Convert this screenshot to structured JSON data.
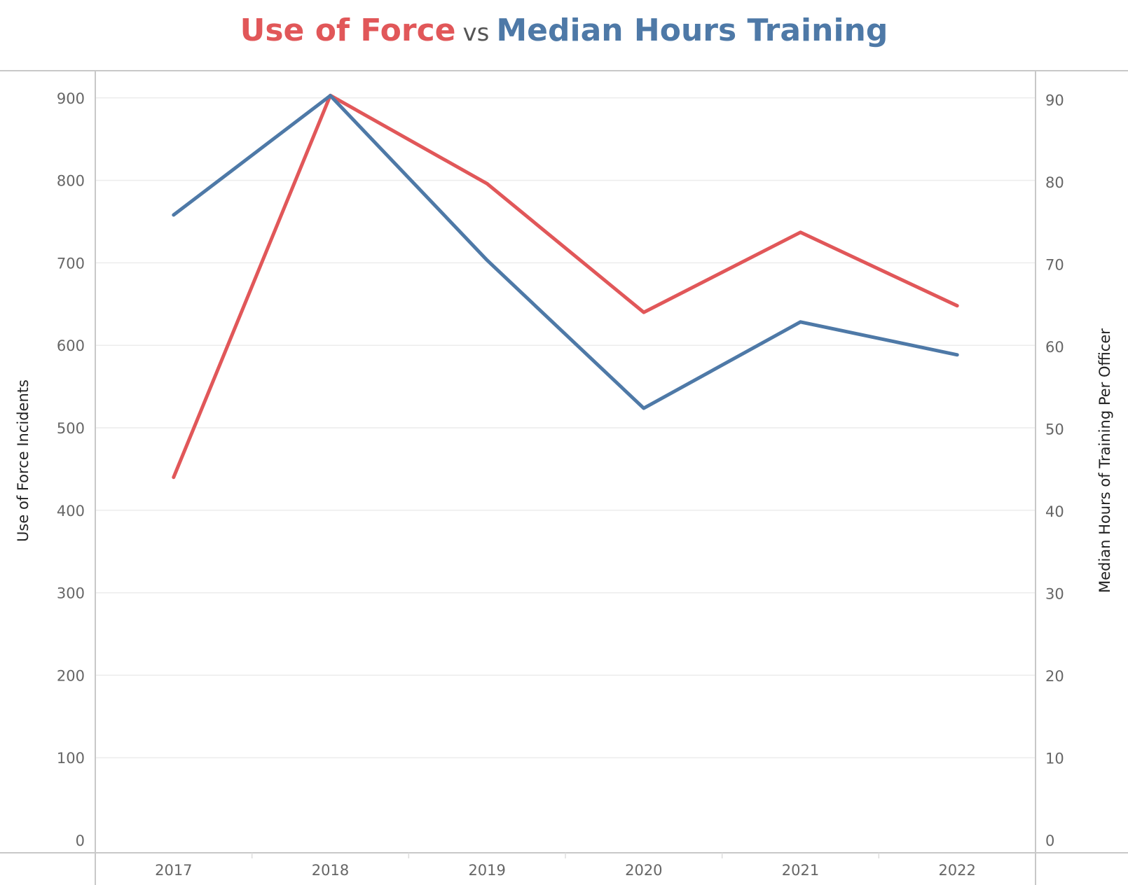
{
  "title": {
    "left_text": "Use of Force",
    "mid_text": "vs",
    "right_text": "Median Hours Training"
  },
  "chart_data": {
    "type": "line",
    "title": "Use of Force vs Median Hours Training",
    "x": [
      "2017",
      "2018",
      "2019",
      "2020",
      "2021",
      "2022"
    ],
    "series": [
      {
        "name": "Use of Force",
        "axis": "left",
        "color": "#e15759",
        "values": [
          440,
          903,
          796,
          640,
          737,
          648
        ]
      },
      {
        "name": "Median Hours Training",
        "axis": "right",
        "color": "#4e79a7",
        "values": [
          76,
          90.5,
          70.5,
          52.5,
          63,
          59
        ]
      }
    ],
    "ylabel_left": "Use of Force Incidents",
    "ylabel_right": "Median Hours of Training Per Officer",
    "ylim_left": [
      0,
      950
    ],
    "ylim_right": [
      0,
      95
    ],
    "yticks_left": [
      0,
      100,
      200,
      300,
      400,
      500,
      600,
      700,
      800,
      900
    ],
    "yticks_right": [
      0,
      10,
      20,
      30,
      40,
      50,
      60,
      70,
      80,
      90
    ],
    "grid": true,
    "legend": "none"
  }
}
